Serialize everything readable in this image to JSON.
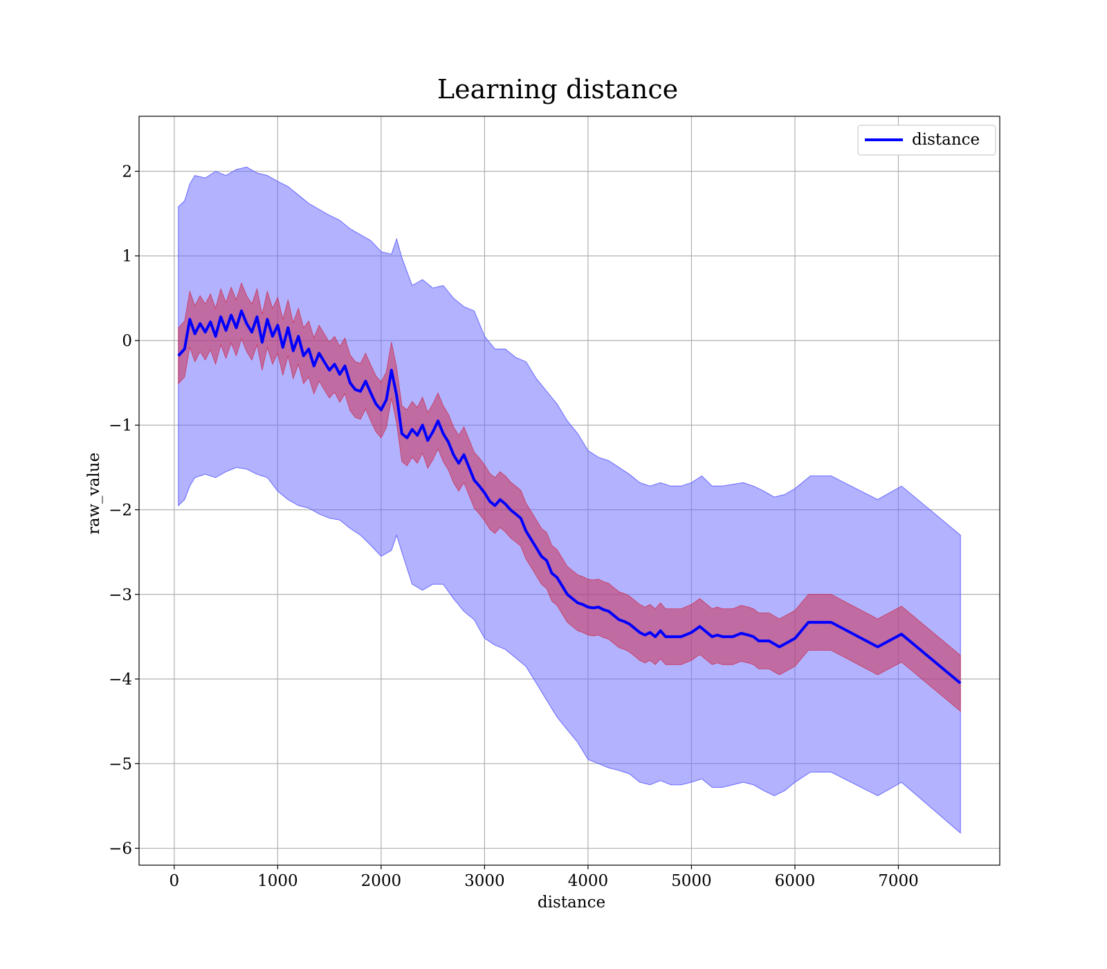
{
  "chart_data": {
    "type": "line",
    "title": "Learning distance",
    "xlabel": "distance",
    "ylabel": "raw_value",
    "xlim": [
      -340,
      7980
    ],
    "ylim": [
      -6.2,
      2.65
    ],
    "xticks": [
      0,
      1000,
      2000,
      3000,
      4000,
      5000,
      6000,
      7000
    ],
    "yticks": [
      2,
      1,
      0,
      -1,
      -2,
      -3,
      -4,
      -5,
      -6
    ],
    "ytick_labels": [
      "2",
      "1",
      "0",
      "−1",
      "−2",
      "−3",
      "−4",
      "−5",
      "−6"
    ],
    "grid": true,
    "legend": {
      "position": "top-right",
      "entries": [
        "distance"
      ]
    },
    "colors": {
      "mean_line": "#0000ff",
      "outer_band": "#6666ff",
      "inner_band": "#cc3355",
      "grid": "#b0b0b0"
    },
    "series": [
      {
        "name": "distance",
        "x": [
          40,
          100,
          150,
          200,
          250,
          300,
          350,
          400,
          450,
          500,
          550,
          600,
          650,
          700,
          750,
          800,
          850,
          900,
          950,
          1000,
          1050,
          1100,
          1150,
          1200,
          1250,
          1300,
          1350,
          1400,
          1450,
          1500,
          1550,
          1600,
          1650,
          1700,
          1750,
          1800,
          1850,
          1900,
          1950,
          2000,
          2050,
          2100,
          2150,
          2200,
          2250,
          2300,
          2350,
          2400,
          2450,
          2500,
          2550,
          2600,
          2650,
          2700,
          2750,
          2800,
          2850,
          2900,
          2950,
          3000,
          3050,
          3100,
          3150,
          3200,
          3250,
          3300,
          3350,
          3400,
          3450,
          3500,
          3550,
          3600,
          3650,
          3700,
          3750,
          3800,
          3850,
          3900,
          3950,
          4000,
          4050,
          4100,
          4150,
          4200,
          4250,
          4300,
          4350,
          4400,
          4450,
          4500,
          4550,
          4600,
          4650,
          4700,
          4750,
          4800,
          4900,
          5000,
          5080,
          5150,
          5200,
          5250,
          5300,
          5400,
          5480,
          5550,
          5600,
          5650,
          5750,
          5850,
          6000,
          6130,
          6350,
          6800,
          7030,
          7600
        ],
        "values": [
          -0.18,
          -0.1,
          0.25,
          0.08,
          0.2,
          0.1,
          0.22,
          0.05,
          0.28,
          0.12,
          0.3,
          0.15,
          0.35,
          0.2,
          0.1,
          0.28,
          -0.02,
          0.25,
          0.05,
          0.18,
          -0.08,
          0.15,
          -0.12,
          0.05,
          -0.18,
          -0.1,
          -0.3,
          -0.15,
          -0.25,
          -0.35,
          -0.28,
          -0.4,
          -0.3,
          -0.5,
          -0.58,
          -0.6,
          -0.48,
          -0.62,
          -0.75,
          -0.82,
          -0.7,
          -0.35,
          -0.65,
          -1.1,
          -1.15,
          -1.05,
          -1.12,
          -1.0,
          -1.18,
          -1.08,
          -0.95,
          -1.1,
          -1.2,
          -1.35,
          -1.45,
          -1.35,
          -1.5,
          -1.65,
          -1.72,
          -1.8,
          -1.9,
          -1.95,
          -1.88,
          -1.93,
          -2.0,
          -2.05,
          -2.1,
          -2.25,
          -2.35,
          -2.45,
          -2.55,
          -2.6,
          -2.75,
          -2.8,
          -2.9,
          -3.0,
          -3.05,
          -3.1,
          -3.12,
          -3.15,
          -3.16,
          -3.15,
          -3.18,
          -3.2,
          -3.25,
          -3.3,
          -3.32,
          -3.35,
          -3.4,
          -3.45,
          -3.48,
          -3.45,
          -3.5,
          -3.43,
          -3.5,
          -3.5,
          -3.5,
          -3.45,
          -3.38,
          -3.45,
          -3.5,
          -3.48,
          -3.5,
          -3.5,
          -3.46,
          -3.48,
          -3.5,
          -3.55,
          -3.55,
          -3.62,
          -3.52,
          -3.33,
          -3.33,
          -3.62,
          -3.47,
          -4.05
        ]
      }
    ],
    "inner_band_halfwidth": 0.33,
    "outer_band": {
      "x": [
        40,
        100,
        150,
        200,
        300,
        400,
        500,
        600,
        700,
        800,
        900,
        1000,
        1100,
        1200,
        1300,
        1400,
        1500,
        1600,
        1700,
        1800,
        1900,
        2000,
        2100,
        2150,
        2200,
        2300,
        2400,
        2500,
        2600,
        2700,
        2800,
        2900,
        3000,
        3100,
        3200,
        3300,
        3400,
        3500,
        3600,
        3700,
        3800,
        3900,
        4000,
        4100,
        4200,
        4300,
        4400,
        4500,
        4600,
        4700,
        4800,
        4900,
        5000,
        5100,
        5200,
        5300,
        5400,
        5500,
        5600,
        5700,
        5800,
        5900,
        6000,
        6150,
        6350,
        6800,
        7030,
        7600
      ],
      "upper": [
        1.58,
        1.65,
        1.85,
        1.95,
        1.92,
        2.0,
        1.95,
        2.02,
        2.05,
        1.98,
        1.95,
        1.88,
        1.82,
        1.72,
        1.62,
        1.55,
        1.48,
        1.42,
        1.32,
        1.25,
        1.18,
        1.05,
        1.02,
        1.2,
        0.98,
        0.65,
        0.72,
        0.62,
        0.65,
        0.5,
        0.4,
        0.35,
        0.05,
        -0.1,
        -0.1,
        -0.2,
        -0.25,
        -0.45,
        -0.6,
        -0.75,
        -0.95,
        -1.1,
        -1.3,
        -1.38,
        -1.42,
        -1.5,
        -1.58,
        -1.68,
        -1.72,
        -1.68,
        -1.72,
        -1.72,
        -1.68,
        -1.6,
        -1.72,
        -1.72,
        -1.7,
        -1.68,
        -1.72,
        -1.78,
        -1.85,
        -1.82,
        -1.75,
        -1.6,
        -1.6,
        -1.88,
        -1.72,
        -2.3
      ],
      "lower": [
        -1.95,
        -1.88,
        -1.72,
        -1.62,
        -1.58,
        -1.62,
        -1.55,
        -1.5,
        -1.52,
        -1.58,
        -1.62,
        -1.78,
        -1.88,
        -1.95,
        -1.98,
        -2.05,
        -2.1,
        -2.12,
        -2.22,
        -2.3,
        -2.42,
        -2.55,
        -2.48,
        -2.3,
        -2.5,
        -2.88,
        -2.95,
        -2.88,
        -2.88,
        -3.05,
        -3.2,
        -3.3,
        -3.52,
        -3.6,
        -3.65,
        -3.75,
        -3.85,
        -4.05,
        -4.25,
        -4.45,
        -4.6,
        -4.75,
        -4.95,
        -5.0,
        -5.05,
        -5.08,
        -5.12,
        -5.22,
        -5.25,
        -5.2,
        -5.25,
        -5.25,
        -5.22,
        -5.18,
        -5.28,
        -5.28,
        -5.25,
        -5.22,
        -5.25,
        -5.32,
        -5.38,
        -5.32,
        -5.22,
        -5.1,
        -5.1,
        -5.38,
        -5.22,
        -5.82
      ]
    }
  }
}
